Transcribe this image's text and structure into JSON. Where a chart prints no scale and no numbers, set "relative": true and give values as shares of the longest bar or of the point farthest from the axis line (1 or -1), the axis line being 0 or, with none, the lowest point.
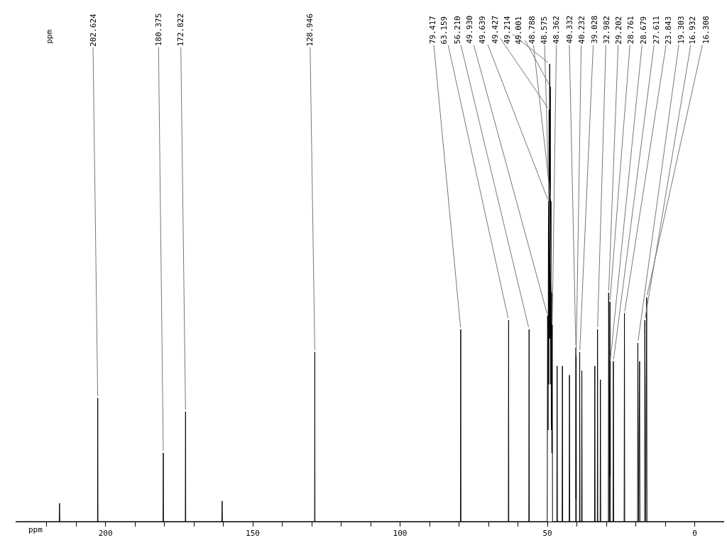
{
  "chart_data": {
    "type": "line",
    "relative": true,
    "xlabel": "ppm",
    "xlim": [
      230.5,
      -10
    ],
    "xticks": [
      {
        "value": 220,
        "label": null
      },
      {
        "value": 210,
        "label": null
      },
      200,
      {
        "value": 190,
        "label": null
      },
      {
        "value": 180,
        "label": null
      },
      {
        "value": 170,
        "label": null
      },
      {
        "value": 160,
        "label": null
      },
      150,
      {
        "value": 140,
        "label": null
      },
      {
        "value": 130,
        "label": null
      },
      {
        "value": 120,
        "label": null
      },
      {
        "value": 110,
        "label": null
      },
      100,
      {
        "value": 90,
        "label": null
      },
      {
        "value": 80,
        "label": null
      },
      {
        "value": 70,
        "label": null
      },
      {
        "value": 60,
        "label": null
      },
      50,
      {
        "value": 40,
        "label": null
      },
      {
        "value": 30,
        "label": null
      },
      {
        "value": 20,
        "label": null
      },
      {
        "value": 10,
        "label": null
      },
      0
    ],
    "grid": false,
    "legend": false,
    "marker": "none",
    "line_style": "solid",
    "series": [
      {
        "color": "#000000",
        "x": [
          230.5,
          215.7,
          215.6,
          215.5,
          202.7,
          202.624,
          202.55,
          180.45,
          180.375,
          180.3,
          172.9,
          172.822,
          172.75,
          160.5,
          160.4,
          160.3,
          129.0,
          128.946,
          128.9,
          79.5,
          79.417,
          79.35,
          63.25,
          63.159,
          63.1,
          56.3,
          56.21,
          56.15,
          50.05,
          49.93,
          49.78,
          49.639,
          49.53,
          49.427,
          49.32,
          49.214,
          49.1,
          49.001,
          48.9,
          48.788,
          48.68,
          48.575,
          48.47,
          48.362,
          48.25,
          46.8,
          46.7,
          46.6,
          45.0,
          44.9,
          44.8,
          42.6,
          42.5,
          42.4,
          40.4,
          40.332,
          40.28,
          40.232,
          40.15,
          39.1,
          39.028,
          38.95,
          38.4,
          38.3,
          38.2,
          34.0,
          33.9,
          33.8,
          33.05,
          32.982,
          32.9,
          32.1,
          32.0,
          31.9,
          29.3,
          29.202,
          28.98,
          28.761,
          28.72,
          28.679,
          28.6,
          27.7,
          27.611,
          27.5,
          23.95,
          23.843,
          23.75,
          19.4,
          19.303,
          19.0,
          18.7,
          18.6,
          17.0,
          16.932,
          16.6,
          16.308,
          16.2,
          -10
        ],
        "values": [
          0,
          0,
          0.04,
          0,
          0,
          0.27,
          0,
          0,
          0.15,
          0,
          0,
          0.24,
          0,
          0,
          0.045,
          0,
          0,
          0.37,
          0,
          0,
          0.42,
          0,
          0,
          0.44,
          0,
          0,
          0.42,
          0,
          0,
          0.45,
          0.2,
          0.7,
          0.3,
          0.9,
          0.4,
          1,
          0.4,
          0.95,
          0.3,
          0.7,
          0.2,
          0.5,
          0.15,
          0.43,
          0,
          0,
          0.34,
          0,
          0,
          0.34,
          0,
          0,
          0.32,
          0,
          0,
          0.38,
          0.05,
          0.36,
          0,
          0,
          0.37,
          0,
          0,
          0.33,
          0,
          0,
          0.34,
          0,
          0,
          0.42,
          0,
          0,
          0.31,
          0,
          0,
          0.5,
          0,
          0.48,
          0.1,
          0.35,
          0,
          0,
          0.35,
          0,
          0,
          0.455,
          0,
          0,
          0.39,
          0,
          0.35,
          0,
          0,
          0.44,
          0,
          0.49,
          0,
          0
        ]
      }
    ],
    "annotations": [
      "ppm",
      {
        "text": "202.624",
        "x": 202.624,
        "y": 0.27
      },
      {
        "text": "180.375",
        "x": 180.375,
        "y": 0.15
      },
      {
        "text": "172.822",
        "x": 172.822,
        "y": 0.24
      },
      {
        "text": "128.946",
        "x": 128.946,
        "y": 0.37
      },
      {
        "text": "79.417",
        "x": 79.417,
        "y": 0.42
      },
      {
        "text": "63.159",
        "x": 63.159,
        "y": 0.44
      },
      {
        "text": "56.210",
        "x": 56.21,
        "y": 0.42
      },
      {
        "text": "49.930",
        "x": 49.93,
        "y": 0.45
      },
      {
        "text": "49.639",
        "x": 49.639,
        "y": 0.7
      },
      {
        "text": "49.427",
        "x": 49.427,
        "y": 0.9
      },
      {
        "text": "49.214",
        "x": 49.214,
        "y": 1
      },
      {
        "text": "49.001",
        "x": 49.001,
        "y": 0.95
      },
      {
        "text": "48.788",
        "x": 48.788,
        "y": 0.7
      },
      {
        "text": "48.575",
        "x": 48.575,
        "y": 0.5
      },
      {
        "text": "48.362",
        "x": 48.362,
        "y": 0.43
      },
      {
        "text": "40.332",
        "x": 40.332,
        "y": 0.38
      },
      {
        "text": "40.232",
        "x": 40.232,
        "y": 0.36
      },
      {
        "text": "39.028",
        "x": 39.028,
        "y": 0.37
      },
      {
        "text": "32.982",
        "x": 32.982,
        "y": 0.42
      },
      {
        "text": "29.202",
        "x": 29.202,
        "y": 0.5
      },
      {
        "text": "28.761",
        "x": 28.761,
        "y": 0.48
      },
      {
        "text": "28.679",
        "x": 28.679,
        "y": 0.35
      },
      {
        "text": "27.611",
        "x": 27.611,
        "y": 0.35
      },
      {
        "text": "23.843",
        "x": 23.843,
        "y": 0.455
      },
      {
        "text": "19.303",
        "x": 19.303,
        "y": 0.39
      },
      {
        "text": "16.932",
        "x": 16.932,
        "y": 0.44
      },
      {
        "text": "16.308",
        "x": 16.308,
        "y": 0.49
      }
    ]
  }
}
